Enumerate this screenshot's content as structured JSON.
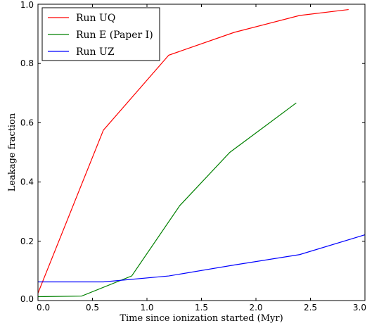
{
  "chart_data": {
    "type": "line",
    "xlabel": "Time since ionization started (Myr)",
    "ylabel": "Leakage fraction",
    "xlim": [
      0,
      3
    ],
    "ylim": [
      0,
      1
    ],
    "xticks": [
      "0.0",
      "0.5",
      "1.0",
      "1.5",
      "2.0",
      "2.5",
      "3.0"
    ],
    "yticks": [
      "0.0",
      "0.2",
      "0.4",
      "0.6",
      "0.8",
      "1.0"
    ],
    "grid": false,
    "legend_position": "top-left",
    "series": [
      {
        "name": "Run UQ",
        "color": "#ff0000",
        "x": [
          0.0,
          0.6,
          1.2,
          1.8,
          2.4,
          2.85
        ],
        "y": [
          0.025,
          0.575,
          0.828,
          0.905,
          0.962,
          0.982
        ]
      },
      {
        "name": "Run E (Paper I)",
        "color": "#008000",
        "x": [
          0.0,
          0.4,
          0.86,
          1.3,
          1.76,
          2.37
        ],
        "y": [
          0.013,
          0.015,
          0.083,
          0.32,
          0.5,
          0.667
        ]
      },
      {
        "name": "Run UZ",
        "color": "#0000ff",
        "x": [
          0.0,
          0.6,
          1.2,
          1.8,
          2.4,
          3.0
        ],
        "y": [
          0.063,
          0.063,
          0.083,
          0.12,
          0.155,
          0.222
        ]
      }
    ]
  }
}
